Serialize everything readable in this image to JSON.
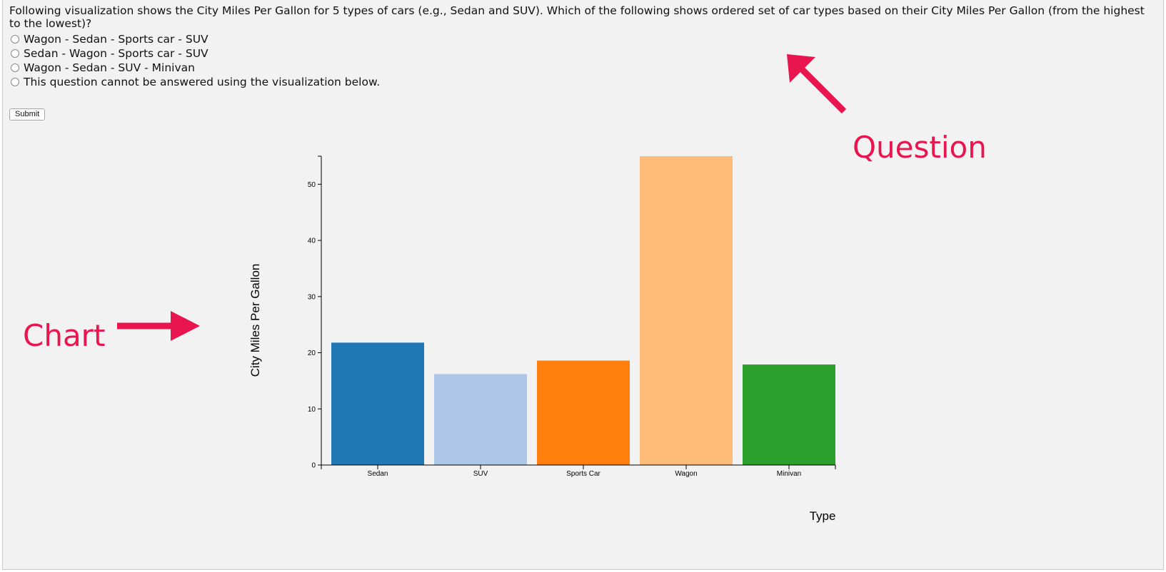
{
  "question": {
    "text": "Following visualization shows the City Miles Per Gallon for 5 types of cars (e.g., Sedan and SUV). Which of the following shows ordered set of car types based on their City Miles Per Gallon (from the highest to the lowest)?",
    "options": [
      "Wagon - Sedan - Sports car - SUV",
      "Sedan - Wagon - Sports car - SUV",
      "Wagon - Sedan - SUV - Minivan",
      "This question cannot be answered using the visualization below."
    ],
    "submit_label": "Submit"
  },
  "annotations": {
    "question_label": "Question",
    "chart_label": "Chart",
    "color": "#e8154f"
  },
  "chart_data": {
    "type": "bar",
    "categories": [
      "Sedan",
      "SUV",
      "Sports Car",
      "Wagon",
      "Minivan"
    ],
    "values": [
      21.8,
      16.2,
      18.6,
      55.0,
      17.9
    ],
    "colors": [
      "#1f77b4",
      "#aec7e8",
      "#ff7f0e",
      "#ffbb78",
      "#2ca02c"
    ],
    "xlabel": "Type",
    "ylabel": "City Miles Per Gallon",
    "ylim": [
      0,
      55
    ],
    "yticks": [
      0,
      10,
      20,
      30,
      40,
      50
    ],
    "grid": false
  }
}
